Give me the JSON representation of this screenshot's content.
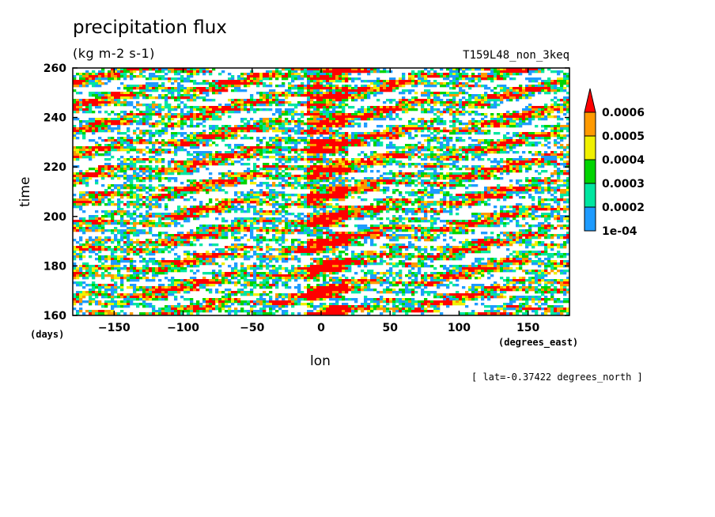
{
  "chart_data": {
    "type": "heatmap",
    "title": "precipitation flux",
    "units": "(kg m-2 s-1)",
    "run_label": "T159L48_non_3keq",
    "xlabel": "lon",
    "x_units": "(degrees_east)",
    "ylabel": "time",
    "y_units": "(days)",
    "annotation": "[ lat=-0.37422 degrees_north ]",
    "xlim": [
      -180,
      180
    ],
    "ylim": [
      160,
      260
    ],
    "x_ticks": [
      -150,
      -100,
      -50,
      0,
      50,
      100,
      150
    ],
    "x_tick_labels": [
      "−150",
      "−100",
      "−50",
      "0",
      "50",
      "100",
      "150"
    ],
    "y_ticks": [
      160,
      180,
      200,
      220,
      240,
      260
    ],
    "y_tick_labels": [
      "160",
      "180",
      "200",
      "220",
      "240",
      "260"
    ],
    "colorbar": {
      "levels": [
        0.0001,
        0.0002,
        0.0003,
        0.0004,
        0.0005,
        0.0006
      ],
      "level_labels": [
        "1e-04",
        "0.0002",
        "0.0003",
        "0.0004",
        "0.0005",
        "0.0006"
      ],
      "colors": [
        "#1e9bff",
        "#00e6a0",
        "#00d400",
        "#f0f000",
        "#ff9a00",
        "#ff0000"
      ],
      "extend": "max"
    },
    "features": {
      "enhanced_band_lon": [
        -10,
        20
      ],
      "eastward_propagating_streaks": true
    }
  }
}
